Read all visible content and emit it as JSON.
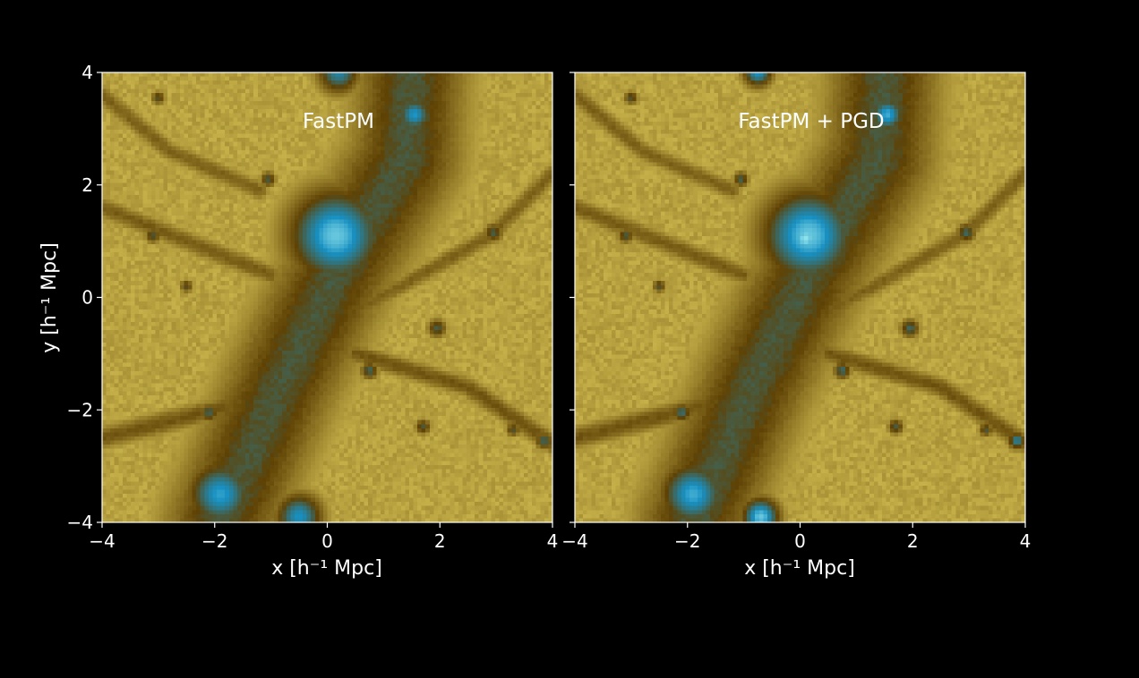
{
  "chart_data": [
    {
      "type": "heatmap",
      "title": "FastPM",
      "xlabel": "x [h⁻¹ Mpc]",
      "ylabel": "y [h⁻¹ Mpc]",
      "xlim": [
        -4,
        4
      ],
      "ylim": [
        -4,
        4
      ],
      "xticks": [
        -4,
        -2,
        0,
        2,
        4
      ],
      "yticks": [
        -4,
        -2,
        0,
        2,
        4
      ],
      "xtick_labels": [
        "−4",
        "−2",
        "0",
        "2",
        "4"
      ],
      "ytick_labels": [
        "−4",
        "−2",
        "0",
        "2",
        "4"
      ],
      "grid": false,
      "colormap": [
        "#e2cf5c",
        "#5e4205",
        "#1890c2",
        "#8fe2ea"
      ],
      "features": [
        {
          "kind": "filament",
          "x": [
            -1.9,
            -0.8,
            0.2,
            1.4,
            1.5
          ],
          "y": [
            -4.0,
            -1.5,
            0.5,
            2.5,
            4.0
          ],
          "width": 1.6,
          "level": 0.6
        },
        {
          "kind": "filament",
          "x": [
            -4.0,
            -2.0,
            -0.5
          ],
          "y": [
            -2.5,
            -2.0,
            -1.6
          ],
          "width": 0.35,
          "level": 0.45
        },
        {
          "kind": "filament",
          "x": [
            0.5,
            2.5,
            4.0
          ],
          "y": [
            -1.0,
            -1.6,
            -2.6
          ],
          "width": 0.3,
          "level": 0.45
        },
        {
          "kind": "filament",
          "x": [
            0.6,
            2.9,
            4.0
          ],
          "y": [
            -0.2,
            1.1,
            2.2
          ],
          "width": 0.28,
          "level": 0.4
        },
        {
          "kind": "filament",
          "x": [
            -4.0,
            -2.5,
            -1.0
          ],
          "y": [
            1.6,
            1.0,
            0.4
          ],
          "width": 0.3,
          "level": 0.42
        },
        {
          "kind": "filament",
          "x": [
            -4.0,
            -2.8,
            -1.2
          ],
          "y": [
            3.6,
            2.6,
            1.9
          ],
          "width": 0.28,
          "level": 0.4
        },
        {
          "kind": "halo",
          "x": 0.15,
          "y": 1.1,
          "r": 1.1,
          "level": 0.95
        },
        {
          "kind": "halo",
          "x": 1.55,
          "y": 3.25,
          "r": 0.4,
          "level": 0.86
        },
        {
          "kind": "halo",
          "x": -1.9,
          "y": -3.5,
          "r": 0.75,
          "level": 0.88
        },
        {
          "kind": "halo",
          "x": -0.5,
          "y": -3.9,
          "r": 0.55,
          "level": 0.85
        },
        {
          "kind": "halo",
          "x": 0.2,
          "y": 4.0,
          "r": 0.5,
          "level": 0.8
        },
        {
          "kind": "halo",
          "x": 2.95,
          "y": 1.15,
          "r": 0.22,
          "level": 0.66
        },
        {
          "kind": "halo",
          "x": 1.95,
          "y": -0.55,
          "r": 0.22,
          "level": 0.66
        },
        {
          "kind": "halo",
          "x": -2.1,
          "y": -2.05,
          "r": 0.22,
          "level": 0.68
        },
        {
          "kind": "halo",
          "x": 3.85,
          "y": -2.55,
          "r": 0.2,
          "level": 0.7
        },
        {
          "kind": "halo",
          "x": -3.1,
          "y": 1.1,
          "r": 0.18,
          "level": 0.64
        },
        {
          "kind": "halo",
          "x": -3.0,
          "y": 3.55,
          "r": 0.16,
          "level": 0.62
        },
        {
          "kind": "halo",
          "x": -1.05,
          "y": 2.1,
          "r": 0.18,
          "level": 0.66
        },
        {
          "kind": "halo",
          "x": 0.75,
          "y": -1.3,
          "r": 0.2,
          "level": 0.68
        },
        {
          "kind": "halo",
          "x": 1.7,
          "y": -2.3,
          "r": 0.18,
          "level": 0.64
        },
        {
          "kind": "halo",
          "x": 3.3,
          "y": -2.35,
          "r": 0.16,
          "level": 0.62
        },
        {
          "kind": "halo",
          "x": -2.5,
          "y": 0.2,
          "r": 0.15,
          "level": 0.6
        }
      ]
    },
    {
      "type": "heatmap",
      "title": "FastPM + PGD",
      "xlabel": "x [h⁻¹ Mpc]",
      "ylabel": "",
      "xlim": [
        -4,
        4
      ],
      "ylim": [
        -4,
        4
      ],
      "xticks": [
        -4,
        -2,
        0,
        2,
        4
      ],
      "yticks": [
        -4,
        -2,
        0,
        2,
        4
      ],
      "xtick_labels": [
        "−4",
        "−2",
        "0",
        "2",
        "4"
      ],
      "ytick_labels": [],
      "grid": false,
      "colormap": [
        "#e2cf5c",
        "#5e4205",
        "#1890c2",
        "#8fe2ea"
      ],
      "features": [
        {
          "kind": "filament",
          "x": [
            -1.9,
            -0.8,
            0.2,
            1.4,
            1.5
          ],
          "y": [
            -4.0,
            -1.5,
            0.5,
            2.5,
            4.0
          ],
          "width": 1.6,
          "level": 0.6
        },
        {
          "kind": "filament",
          "x": [
            -4.0,
            -2.0,
            -0.5
          ],
          "y": [
            -2.5,
            -2.0,
            -1.6
          ],
          "width": 0.35,
          "level": 0.45
        },
        {
          "kind": "filament",
          "x": [
            0.5,
            2.5,
            4.0
          ],
          "y": [
            -1.0,
            -1.6,
            -2.6
          ],
          "width": 0.3,
          "level": 0.45
        },
        {
          "kind": "filament",
          "x": [
            0.6,
            2.9,
            4.0
          ],
          "y": [
            -0.2,
            1.1,
            2.2
          ],
          "width": 0.28,
          "level": 0.4
        },
        {
          "kind": "filament",
          "x": [
            -4.0,
            -2.5,
            -1.0
          ],
          "y": [
            1.6,
            1.0,
            0.4
          ],
          "width": 0.3,
          "level": 0.42
        },
        {
          "kind": "filament",
          "x": [
            -4.0,
            -2.8,
            -1.2
          ],
          "y": [
            3.6,
            2.6,
            1.9
          ],
          "width": 0.28,
          "level": 0.4
        },
        {
          "kind": "halo",
          "x": 0.15,
          "y": 1.1,
          "r": 1.1,
          "level": 0.95
        },
        {
          "kind": "halo",
          "x": 0.1,
          "y": 1.05,
          "r": 0.45,
          "level": 1.0
        },
        {
          "kind": "halo",
          "x": 1.55,
          "y": 3.25,
          "r": 0.4,
          "level": 0.9
        },
        {
          "kind": "halo",
          "x": -1.9,
          "y": -3.5,
          "r": 0.75,
          "level": 0.9
        },
        {
          "kind": "halo",
          "x": -0.7,
          "y": -3.9,
          "r": 0.45,
          "level": 0.95
        },
        {
          "kind": "halo",
          "x": -0.75,
          "y": 4.0,
          "r": 0.35,
          "level": 0.85
        },
        {
          "kind": "halo",
          "x": 2.95,
          "y": 1.15,
          "r": 0.22,
          "level": 0.7
        },
        {
          "kind": "halo",
          "x": 1.95,
          "y": -0.55,
          "r": 0.22,
          "level": 0.7
        },
        {
          "kind": "halo",
          "x": -2.1,
          "y": -2.05,
          "r": 0.22,
          "level": 0.72
        },
        {
          "kind": "halo",
          "x": 3.85,
          "y": -2.55,
          "r": 0.2,
          "level": 0.8
        },
        {
          "kind": "halo",
          "x": -3.1,
          "y": 1.1,
          "r": 0.18,
          "level": 0.66
        },
        {
          "kind": "halo",
          "x": -3.0,
          "y": 3.55,
          "r": 0.16,
          "level": 0.64
        },
        {
          "kind": "halo",
          "x": -1.05,
          "y": 2.1,
          "r": 0.18,
          "level": 0.68
        },
        {
          "kind": "halo",
          "x": 0.75,
          "y": -1.3,
          "r": 0.2,
          "level": 0.7
        },
        {
          "kind": "halo",
          "x": 1.7,
          "y": -2.3,
          "r": 0.18,
          "level": 0.66
        },
        {
          "kind": "halo",
          "x": 3.3,
          "y": -2.35,
          "r": 0.16,
          "level": 0.64
        },
        {
          "kind": "halo",
          "x": -2.5,
          "y": 0.2,
          "r": 0.15,
          "level": 0.62
        }
      ]
    }
  ]
}
